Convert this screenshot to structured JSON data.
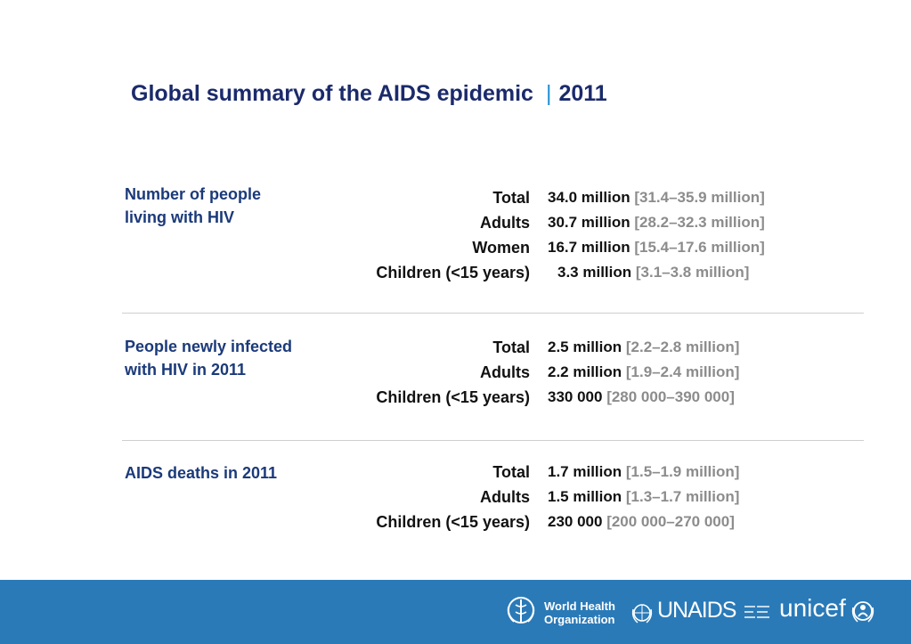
{
  "title": {
    "main": "Global summary of the AIDS epidemic",
    "separator": "|",
    "year": "2011"
  },
  "sections": [
    {
      "label_line1": "Number of people",
      "label_line2": "living with HIV",
      "rows": [
        {
          "category": "Total",
          "value": "34.0 million",
          "range": "[31.4–35.9 million]"
        },
        {
          "category": "Adults",
          "value": "30.7 million",
          "range": "[28.2–32.3 million]"
        },
        {
          "category": "Women",
          "value": "16.7 million",
          "range": "[15.4–17.6 million]"
        },
        {
          "category": "Children (<15 years)",
          "value": "3.3 million",
          "range": "[3.1–3.8 million]"
        }
      ]
    },
    {
      "label_line1": "People newly infected",
      "label_line2": "with HIV in 2011",
      "rows": [
        {
          "category": "Total",
          "value": "2.5 million",
          "range": "[2.2–2.8 million]"
        },
        {
          "category": "Adults",
          "value": "2.2 million",
          "range": "[1.9–2.4 million]"
        },
        {
          "category": "Children (<15 years)",
          "value": "330 000",
          "range": "[280 000–390 000]"
        }
      ]
    },
    {
      "label_line1": "AIDS deaths in 2011",
      "label_line2": "",
      "rows": [
        {
          "category": "Total",
          "value": "1.7 million",
          "range": "[1.5–1.9 million]"
        },
        {
          "category": "Adults",
          "value": "1.5 million",
          "range": "[1.3–1.7 million]"
        },
        {
          "category": "Children (<15 years)",
          "value": "230 000",
          "range": "[200 000–270 000]"
        }
      ]
    }
  ],
  "footer": {
    "background": "#2a7ab8",
    "who_line1": "World Health",
    "who_line2": "Organization",
    "who_icon": "who-emblem-icon",
    "unaids_text": "UNAIDS",
    "unaids_icon": "un-emblem-icon",
    "unicef_text": "unicef",
    "unicef_icon": "unicef-emblem-icon"
  }
}
